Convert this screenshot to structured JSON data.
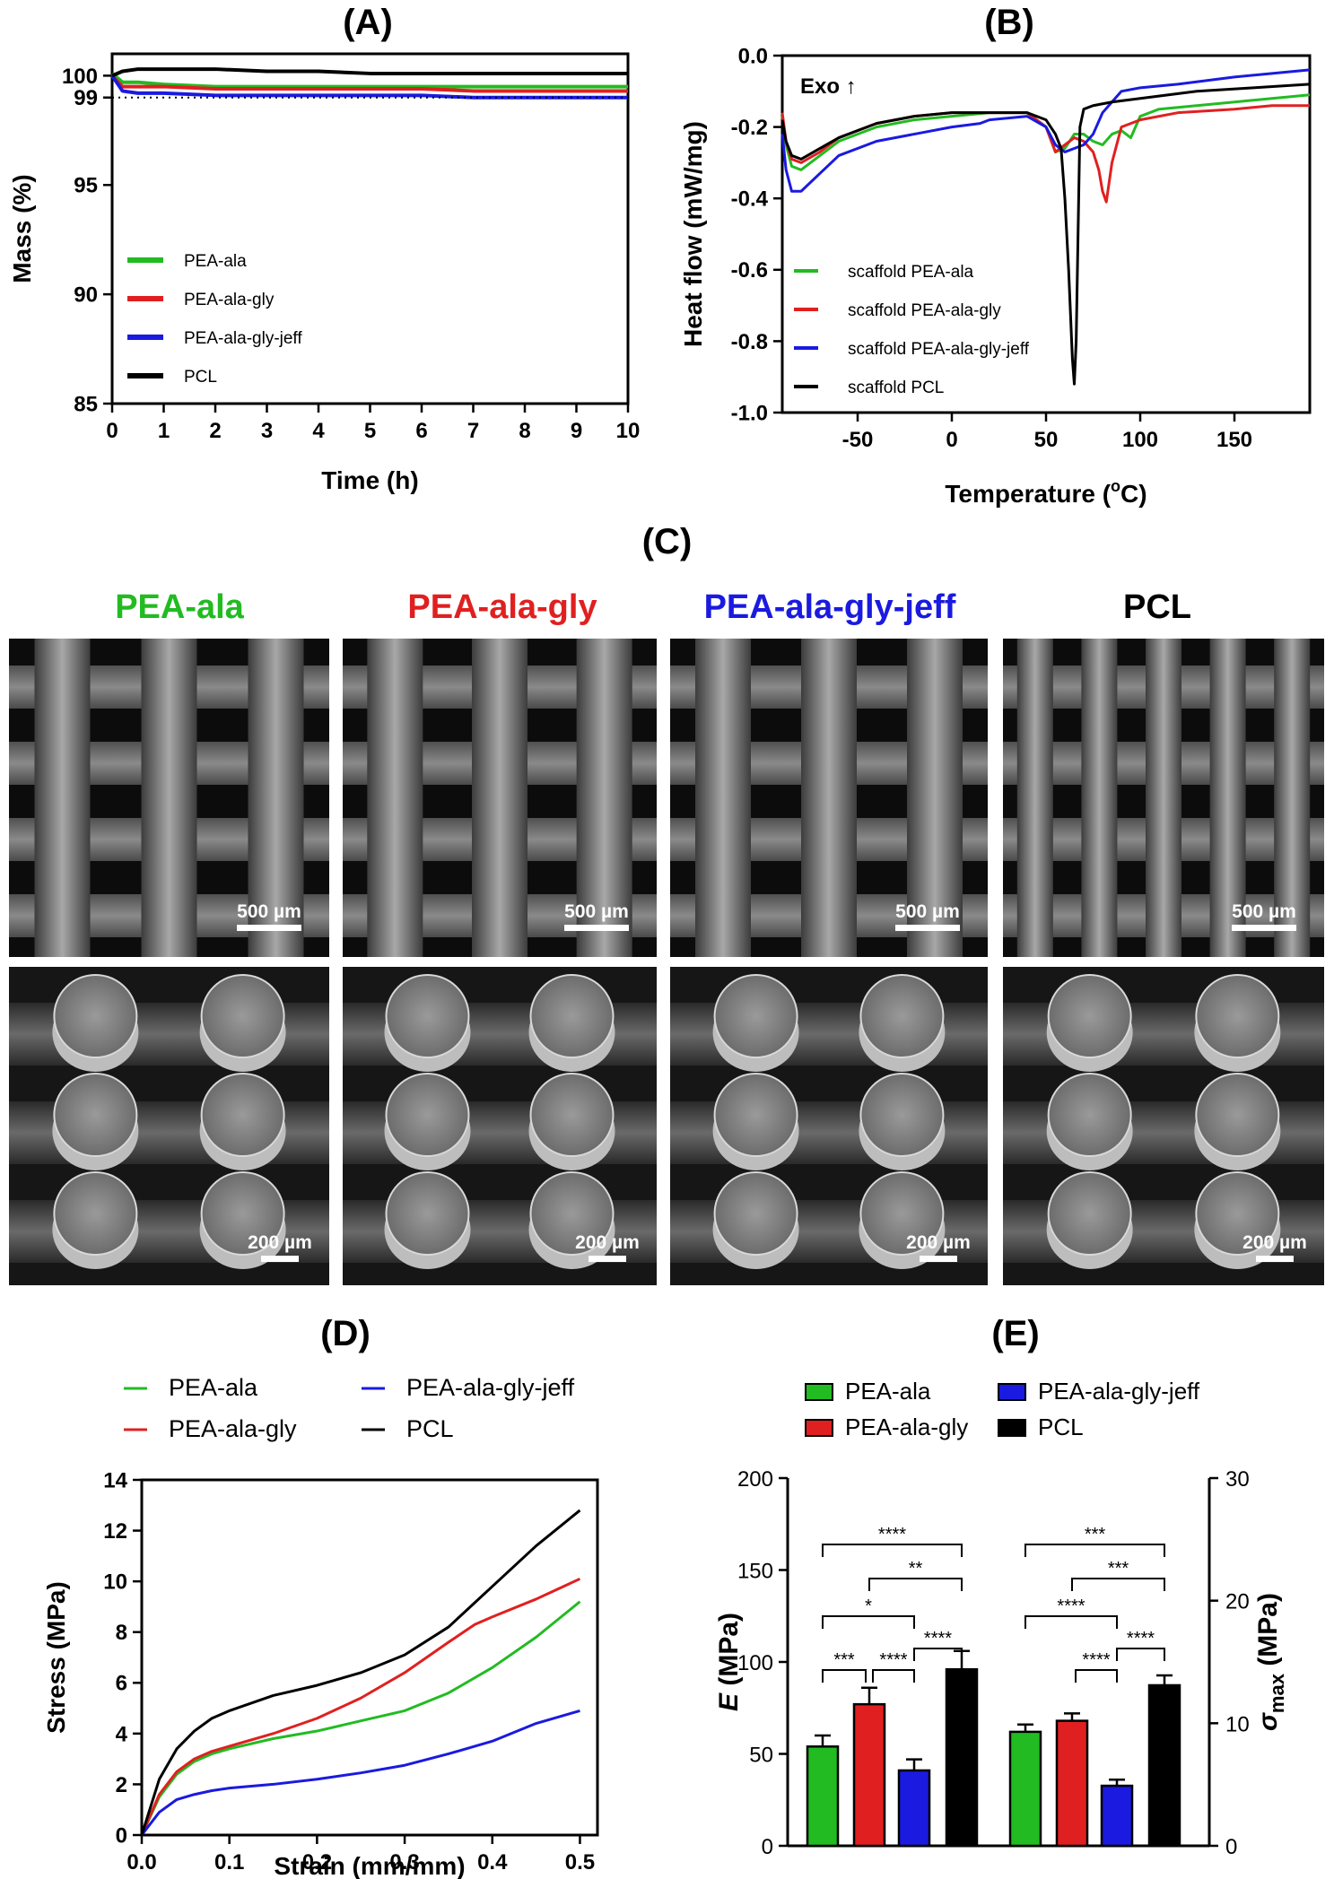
{
  "panels": {
    "A": "(A)",
    "B": "(B)",
    "C": "(C)",
    "D": "(D)",
    "E": "(E)"
  },
  "colors": {
    "PEA-ala": "#22bb22",
    "PEA-ala-gly": "#e02020",
    "PEA-ala-gly-jeff": "#1a1ae0",
    "PCL": "#000000"
  },
  "chart_data": [
    {
      "id": "A",
      "type": "line",
      "title": "",
      "xlabel": "Time (h)",
      "ylabel": "Mass (%)",
      "xlim": [
        0,
        10
      ],
      "ylim": [
        85,
        101
      ],
      "xticks": [
        0,
        1,
        2,
        3,
        4,
        5,
        6,
        7,
        8,
        9,
        10
      ],
      "yticks": [
        85,
        90,
        95,
        99,
        100
      ],
      "reference_line": {
        "y": 99,
        "style": "dotted"
      },
      "legend": {
        "position": "left-middle",
        "items": [
          "PEA-ala",
          "PEA-ala-gly",
          "PEA-ala-gly-jeff",
          "PCL"
        ]
      },
      "series": [
        {
          "name": "PEA-ala",
          "x": [
            0,
            0.2,
            0.5,
            1,
            2,
            3,
            4,
            5,
            6,
            7,
            8,
            9,
            10
          ],
          "y": [
            100.1,
            99.7,
            99.7,
            99.6,
            99.5,
            99.5,
            99.5,
            99.5,
            99.5,
            99.5,
            99.5,
            99.5,
            99.5
          ]
        },
        {
          "name": "PEA-ala-gly",
          "x": [
            0,
            0.2,
            0.5,
            1,
            2,
            3,
            4,
            5,
            6,
            7,
            8,
            9,
            10
          ],
          "y": [
            100.0,
            99.5,
            99.5,
            99.5,
            99.4,
            99.4,
            99.4,
            99.4,
            99.4,
            99.3,
            99.3,
            99.3,
            99.3
          ]
        },
        {
          "name": "PEA-ala-gly-jeff",
          "x": [
            0,
            0.2,
            0.5,
            1,
            2,
            3,
            4,
            5,
            6,
            7,
            8,
            9,
            10
          ],
          "y": [
            100.0,
            99.3,
            99.2,
            99.2,
            99.1,
            99.1,
            99.1,
            99.1,
            99.1,
            99.0,
            99.0,
            99.0,
            99.0
          ]
        },
        {
          "name": "PCL",
          "x": [
            0,
            0.2,
            0.5,
            1,
            2,
            3,
            4,
            5,
            6,
            7,
            8,
            9,
            10
          ],
          "y": [
            100.0,
            100.2,
            100.3,
            100.3,
            100.3,
            100.2,
            100.2,
            100.1,
            100.1,
            100.1,
            100.1,
            100.1,
            100.1
          ]
        }
      ]
    },
    {
      "id": "B",
      "type": "line",
      "title": "",
      "xlabel": "Temperature (°C)",
      "xlabel_main": "Temperature (",
      "xlabel_sup": "o",
      "xlabel_end": "C)",
      "ylabel": "Heat flow (mW/mg)",
      "annotation": "Exo ↑",
      "xlim": [
        -90,
        190
      ],
      "ylim": [
        -1.0,
        0.0
      ],
      "xticks": [
        -50,
        0,
        50,
        100,
        150
      ],
      "yticks": [
        0.0,
        -0.2,
        -0.4,
        -0.6,
        -0.8,
        -1.0
      ],
      "ytick_labels": [
        "0.0",
        "-0.2",
        "-0.4",
        "-0.6",
        "-0.8",
        "-1.0"
      ],
      "legend": {
        "position": "bottom-left",
        "items": [
          "scaffold PEA-ala",
          "scaffold PEA-ala-gly",
          "scaffold PEA-ala-gly-jeff",
          "scaffold PCL"
        ]
      },
      "series": [
        {
          "name": "scaffold PEA-ala",
          "color_key": "PEA-ala",
          "x": [
            -90,
            -88,
            -85,
            -80,
            -70,
            -60,
            -40,
            -20,
            0,
            20,
            40,
            50,
            55,
            60,
            65,
            70,
            75,
            80,
            85,
            90,
            95,
            100,
            110,
            130,
            150,
            170,
            190
          ],
          "y": [
            -0.17,
            -0.25,
            -0.31,
            -0.32,
            -0.28,
            -0.24,
            -0.2,
            -0.18,
            -0.17,
            -0.16,
            -0.16,
            -0.2,
            -0.27,
            -0.26,
            -0.22,
            -0.22,
            -0.24,
            -0.25,
            -0.22,
            -0.21,
            -0.23,
            -0.17,
            -0.15,
            -0.14,
            -0.13,
            -0.12,
            -0.11
          ]
        },
        {
          "name": "scaffold PEA-ala-gly",
          "color_key": "PEA-ala-gly",
          "x": [
            -90,
            -88,
            -85,
            -80,
            -70,
            -60,
            -40,
            -20,
            0,
            20,
            40,
            50,
            55,
            60,
            65,
            70,
            75,
            78,
            80,
            82,
            85,
            90,
            100,
            120,
            150,
            170,
            190
          ],
          "y": [
            -0.16,
            -0.24,
            -0.29,
            -0.3,
            -0.27,
            -0.23,
            -0.19,
            -0.17,
            -0.16,
            -0.16,
            -0.16,
            -0.2,
            -0.27,
            -0.25,
            -0.23,
            -0.24,
            -0.27,
            -0.32,
            -0.38,
            -0.41,
            -0.3,
            -0.2,
            -0.18,
            -0.16,
            -0.15,
            -0.14,
            -0.14
          ]
        },
        {
          "name": "scaffold PEA-ala-gly-jeff",
          "color_key": "PEA-ala-gly-jeff",
          "x": [
            -90,
            -88,
            -85,
            -80,
            -70,
            -60,
            -40,
            -20,
            0,
            15,
            20,
            40,
            50,
            55,
            60,
            65,
            70,
            75,
            80,
            90,
            100,
            120,
            150,
            170,
            190
          ],
          "y": [
            -0.22,
            -0.32,
            -0.38,
            -0.38,
            -0.33,
            -0.28,
            -0.24,
            -0.22,
            -0.2,
            -0.19,
            -0.18,
            -0.17,
            -0.2,
            -0.25,
            -0.27,
            -0.26,
            -0.25,
            -0.22,
            -0.16,
            -0.1,
            -0.09,
            -0.08,
            -0.06,
            -0.05,
            -0.04
          ]
        },
        {
          "name": "scaffold PCL",
          "color_key": "PCL",
          "x": [
            -90,
            -88,
            -85,
            -80,
            -70,
            -60,
            -40,
            -20,
            0,
            20,
            40,
            50,
            55,
            58,
            60,
            62,
            64,
            65,
            66,
            67,
            68,
            70,
            75,
            85,
            100,
            130,
            160,
            190
          ],
          "y": [
            -0.18,
            -0.24,
            -0.28,
            -0.29,
            -0.26,
            -0.23,
            -0.19,
            -0.17,
            -0.16,
            -0.16,
            -0.16,
            -0.18,
            -0.22,
            -0.26,
            -0.4,
            -0.6,
            -0.85,
            -0.92,
            -0.8,
            -0.5,
            -0.2,
            -0.15,
            -0.14,
            -0.13,
            -0.12,
            -0.1,
            -0.09,
            -0.08
          ]
        }
      ]
    },
    {
      "id": "D",
      "type": "line",
      "title": "",
      "xlabel": "Strain (mm/mm)",
      "ylabel": "Stress (MPa)",
      "xlim": [
        0,
        0.52
      ],
      "ylim": [
        0,
        14
      ],
      "xticks": [
        0.0,
        0.1,
        0.2,
        0.3,
        0.4,
        0.5
      ],
      "xtick_labels": [
        "0.0",
        "0.1",
        "0.2",
        "0.3",
        "0.4",
        "0.5"
      ],
      "yticks": [
        0,
        2,
        4,
        6,
        8,
        10,
        12,
        14
      ],
      "legend": {
        "position": "top",
        "items": [
          "PEA-ala",
          "PEA-ala-gly-jeff",
          "PEA-ala-gly",
          "PCL"
        ]
      },
      "series": [
        {
          "name": "PEA-ala",
          "x": [
            0,
            0.02,
            0.04,
            0.06,
            0.08,
            0.1,
            0.15,
            0.2,
            0.25,
            0.3,
            0.35,
            0.4,
            0.45,
            0.5
          ],
          "y": [
            0,
            1.5,
            2.4,
            2.9,
            3.2,
            3.4,
            3.8,
            4.1,
            4.5,
            4.9,
            5.6,
            6.6,
            7.8,
            9.2
          ]
        },
        {
          "name": "PEA-ala-gly",
          "x": [
            0,
            0.02,
            0.04,
            0.06,
            0.08,
            0.1,
            0.15,
            0.2,
            0.25,
            0.3,
            0.35,
            0.38,
            0.4,
            0.45,
            0.5
          ],
          "y": [
            0,
            1.6,
            2.5,
            3.0,
            3.3,
            3.5,
            4.0,
            4.6,
            5.4,
            6.4,
            7.6,
            8.3,
            8.6,
            9.3,
            10.1
          ]
        },
        {
          "name": "PEA-ala-gly-jeff",
          "x": [
            0,
            0.02,
            0.04,
            0.06,
            0.08,
            0.1,
            0.15,
            0.2,
            0.25,
            0.3,
            0.35,
            0.4,
            0.45,
            0.5
          ],
          "y": [
            0,
            0.9,
            1.4,
            1.6,
            1.75,
            1.85,
            2.0,
            2.2,
            2.45,
            2.75,
            3.2,
            3.7,
            4.4,
            4.9
          ]
        },
        {
          "name": "PCL",
          "x": [
            0,
            0.02,
            0.04,
            0.06,
            0.08,
            0.1,
            0.15,
            0.2,
            0.25,
            0.3,
            0.35,
            0.4,
            0.45,
            0.5
          ],
          "y": [
            0,
            2.2,
            3.4,
            4.1,
            4.6,
            4.9,
            5.5,
            5.9,
            6.4,
            7.1,
            8.2,
            9.8,
            11.4,
            12.8
          ]
        }
      ]
    },
    {
      "id": "E",
      "type": "bar",
      "title": "",
      "groups": [
        "E",
        "σmax"
      ],
      "ylabel_left": "E (MPa)",
      "ylabel_right": "σmax (MPa)",
      "ylim_left": [
        0,
        200
      ],
      "ylim_right": [
        0,
        30
      ],
      "yticks_left": [
        0,
        50,
        100,
        150,
        200
      ],
      "yticks_right": [
        0,
        10,
        20,
        30
      ],
      "legend": {
        "position": "top",
        "items": [
          "PEA-ala",
          "PEA-ala-gly",
          "PEA-ala-gly-jeff",
          "PCL"
        ]
      },
      "series": [
        {
          "name": "PEA-ala",
          "E": 54,
          "E_err": 6,
          "sigma": 9.3,
          "sigma_err": 0.6
        },
        {
          "name": "PEA-ala-gly",
          "E": 77,
          "E_err": 9,
          "sigma": 10.2,
          "sigma_err": 0.6
        },
        {
          "name": "PEA-ala-gly-jeff",
          "E": 41,
          "E_err": 6,
          "sigma": 4.9,
          "sigma_err": 0.5
        },
        {
          "name": "PCL",
          "E": 96,
          "E_err": 10,
          "sigma": 13.1,
          "sigma_err": 0.8
        }
      ],
      "significance": [
        {
          "group": "E",
          "from": 0,
          "to": 3,
          "label": "****",
          "level": 5
        },
        {
          "group": "E",
          "from": 1,
          "to": 3,
          "label": "**",
          "level": 4
        },
        {
          "group": "E",
          "from": 0,
          "to": 2,
          "label": "*",
          "level": 3
        },
        {
          "group": "E",
          "from": 2,
          "to": 3,
          "label": "****",
          "level": 2
        },
        {
          "group": "E",
          "from": 0,
          "to": 1,
          "label": "***",
          "level": 1
        },
        {
          "group": "E",
          "from": 1,
          "to": 2,
          "label": "****",
          "level": 1
        },
        {
          "group": "σmax",
          "from": 0,
          "to": 3,
          "label": "***",
          "level": 5
        },
        {
          "group": "σmax",
          "from": 1,
          "to": 3,
          "label": "***",
          "level": 4
        },
        {
          "group": "σmax",
          "from": 0,
          "to": 2,
          "label": "****",
          "level": 3
        },
        {
          "group": "σmax",
          "from": 1,
          "to": 2,
          "label": "****",
          "level": 1
        },
        {
          "group": "σmax",
          "from": 2,
          "to": 3,
          "label": "****",
          "level": 2
        }
      ]
    }
  ],
  "sem": {
    "columns": [
      {
        "label": "PEA-ala",
        "color_key": "PEA-ala"
      },
      {
        "label": "PEA-ala-gly",
        "color_key": "PEA-ala-gly"
      },
      {
        "label": "PEA-ala-gly-jeff",
        "color_key": "PEA-ala-gly-jeff"
      },
      {
        "label": "PCL",
        "color_key": "PCL"
      }
    ],
    "scale_top": "500 µm",
    "scale_bottom": "200 µm"
  }
}
